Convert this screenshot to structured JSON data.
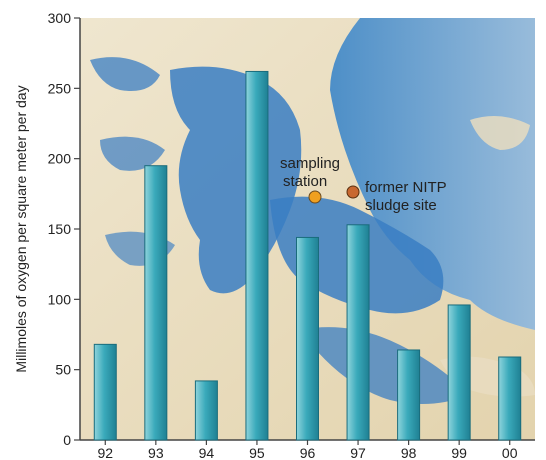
{
  "chart_data": {
    "type": "bar",
    "categories": [
      "92",
      "93",
      "94",
      "95",
      "96",
      "97",
      "98",
      "99",
      "00"
    ],
    "values": [
      68,
      195,
      42,
      262,
      144,
      153,
      64,
      96,
      59
    ],
    "xlabel": "",
    "ylabel": "Millimoles of oxygen per square meter per day",
    "ylim": [
      0,
      300
    ],
    "yticks": [
      0,
      50,
      100,
      150,
      200,
      250,
      300
    ],
    "grid": false,
    "annotations": [
      {
        "lines": [
          "sampling",
          "station"
        ],
        "marker_color": "#f0a020"
      },
      {
        "lines": [
          "former NITP",
          "sludge site"
        ],
        "marker_color": "#c86830"
      }
    ],
    "colors": {
      "bar": "#2a9aab",
      "water": "#2f7fc4",
      "land": "#e8dcc0"
    }
  }
}
